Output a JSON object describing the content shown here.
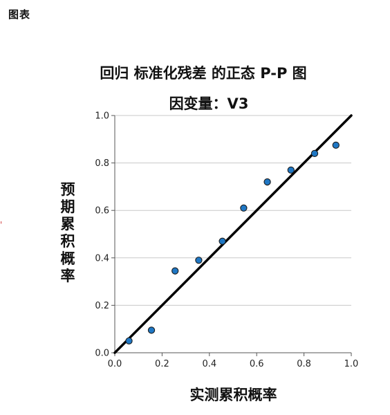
{
  "header": {
    "section_label": "图表"
  },
  "colors": {
    "point_fill": "#1f77c4",
    "point_stroke": "#1a1a1a",
    "reference_line": "#000000",
    "gridline": "#c8c8c8",
    "axis": "#555555",
    "edge_mark": "#d23b3b"
  },
  "chart_data": {
    "type": "scatter",
    "title": "回归 标准化残差 的正态 P-P 图",
    "subtitle": "因变量：V3",
    "xlabel": "实测累积概率",
    "ylabel": "预期累积概率",
    "xlim": [
      0.0,
      1.0
    ],
    "ylim": [
      0.0,
      1.0
    ],
    "x_ticks": [
      "0.0",
      "0.2",
      "0.4",
      "0.6",
      "0.8",
      "1.0"
    ],
    "y_ticks": [
      "0.0",
      "0.2",
      "0.4",
      "0.6",
      "0.8",
      "1.0"
    ],
    "grid": "horizontal",
    "reference_line": {
      "from": [
        0.0,
        0.0
      ],
      "to": [
        1.0,
        1.0
      ]
    },
    "series": [
      {
        "x": [
          0.06,
          0.155,
          0.255,
          0.355,
          0.455,
          0.545,
          0.645,
          0.745,
          0.845,
          0.935
        ],
        "y": [
          0.05,
          0.095,
          0.345,
          0.39,
          0.47,
          0.61,
          0.72,
          0.77,
          0.84,
          0.875
        ]
      }
    ]
  },
  "edge_mark": "'"
}
